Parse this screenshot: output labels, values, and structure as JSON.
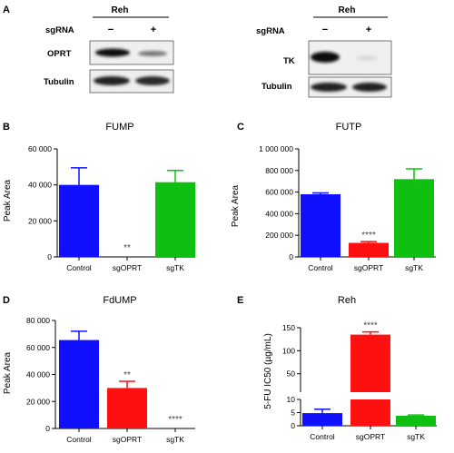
{
  "panel_a": {
    "letter": "A",
    "blots": [
      {
        "cell_line": "Reh",
        "condition_label": "sgRNA",
        "lanes": [
          "−",
          "+"
        ],
        "rows": [
          "OPRT",
          "Tubulin"
        ],
        "band_intensity": [
          [
            1.0,
            0.55
          ],
          [
            1.0,
            0.95
          ]
        ]
      },
      {
        "cell_line": "Reh",
        "condition_label": "sgRNA",
        "lanes": [
          "−",
          "+"
        ],
        "rows": [
          "TK",
          "Tubulin"
        ],
        "band_intensity": [
          [
            1.0,
            0.08
          ],
          [
            1.0,
            1.0
          ]
        ]
      }
    ]
  },
  "colors": {
    "control": "#1010ff",
    "sgOPRT": "#ff1010",
    "sgTK": "#10c010"
  },
  "chart_data": [
    {
      "letter": "B",
      "type": "bar",
      "title": "FUMP",
      "ylabel": "Peak Area",
      "categories": [
        "Control",
        "sgOPRT",
        "sgTK"
      ],
      "values": [
        40000,
        0,
        41500
      ],
      "errors": [
        9500,
        0,
        6500
      ],
      "significance": [
        "",
        "**",
        ""
      ],
      "ylim": [
        0,
        60000
      ],
      "yticks": [
        0,
        20000,
        40000,
        60000
      ],
      "ytick_labels": [
        "0",
        "20 000",
        "40 000",
        "60 000"
      ]
    },
    {
      "letter": "C",
      "type": "bar",
      "title": "FUTP",
      "ylabel": "Peak Area",
      "categories": [
        "Control",
        "sgOPRT",
        "sgTK"
      ],
      "values": [
        580000,
        130000,
        720000
      ],
      "errors": [
        12000,
        12000,
        95000
      ],
      "significance": [
        "",
        "****",
        ""
      ],
      "ylim": [
        0,
        1000000
      ],
      "yticks": [
        0,
        200000,
        400000,
        600000,
        800000,
        1000000
      ],
      "ytick_labels": [
        "0",
        "200 000",
        "400 000",
        "600 000",
        "800 000",
        "1 000 000"
      ]
    },
    {
      "letter": "D",
      "type": "bar",
      "title": "FdUMP",
      "ylabel": "Peak Area",
      "categories": [
        "Control",
        "sgOPRT",
        "sgTK"
      ],
      "values": [
        65500,
        30000,
        0
      ],
      "errors": [
        6500,
        5000,
        0
      ],
      "significance": [
        "",
        "**",
        "****"
      ],
      "ylim": [
        0,
        80000
      ],
      "yticks": [
        0,
        20000,
        40000,
        60000,
        80000
      ],
      "ytick_labels": [
        "0",
        "20 000",
        "40 000",
        "60 000",
        "80 000"
      ]
    },
    {
      "letter": "E",
      "type": "bar",
      "title": "Reh",
      "ylabel": "5-FU IC50 (µg/mL)",
      "categories": [
        "Control",
        "sgOPRT",
        "sgTK"
      ],
      "values": [
        4.8,
        135,
        3.8
      ],
      "errors": [
        1.5,
        6,
        0.3
      ],
      "significance": [
        "",
        "****",
        ""
      ],
      "axis_break": {
        "lower": [
          0,
          10
        ],
        "upper": [
          10,
          150
        ]
      },
      "yticks_lower": [
        0,
        5,
        10
      ],
      "yticks_upper": [
        50,
        100,
        150
      ]
    }
  ]
}
